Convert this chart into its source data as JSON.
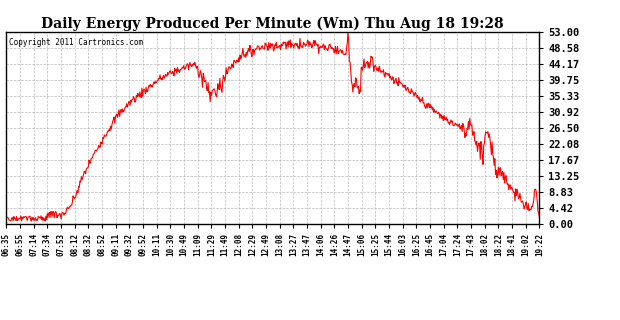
{
  "title": "Daily Energy Produced Per Minute (Wm) Thu Aug 18 19:28",
  "copyright": "Copyright 2011 Cartronics.com",
  "line_color": "#FF0000",
  "background_color": "#FFFFFF",
  "plot_bg_color": "#FFFFFF",
  "grid_color": "#AAAAAA",
  "yticks": [
    0.0,
    4.42,
    8.83,
    13.25,
    17.67,
    22.08,
    26.5,
    30.92,
    35.33,
    39.75,
    44.17,
    48.58,
    53.0
  ],
  "ymax": 53.0,
  "ymin": 0.0,
  "xtick_labels": [
    "06:35",
    "06:55",
    "07:14",
    "07:34",
    "07:53",
    "08:12",
    "08:32",
    "08:52",
    "09:11",
    "09:32",
    "09:52",
    "10:11",
    "10:30",
    "10:49",
    "11:09",
    "11:29",
    "11:49",
    "12:08",
    "12:29",
    "12:49",
    "13:08",
    "13:27",
    "13:47",
    "14:06",
    "14:26",
    "14:47",
    "15:06",
    "15:25",
    "15:44",
    "16:03",
    "16:25",
    "16:45",
    "17:04",
    "17:24",
    "17:43",
    "18:02",
    "18:22",
    "18:41",
    "19:02",
    "19:22"
  ]
}
